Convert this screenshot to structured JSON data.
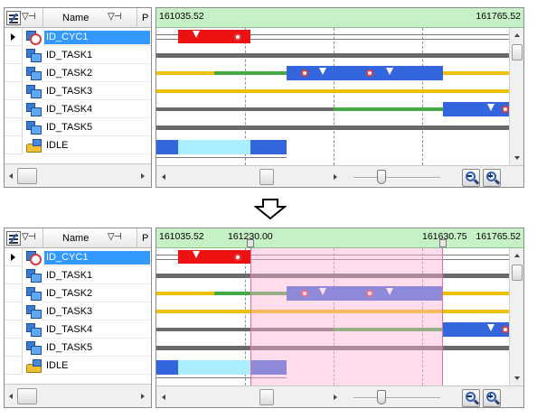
{
  "header": {
    "filter_label": "▽⊣",
    "name_label": "Name",
    "name_filter_label": "▽⊣",
    "priority_label": "P"
  },
  "tasks": [
    {
      "name": "ID_CYC1",
      "type": "cyclic",
      "selected": true
    },
    {
      "name": "ID_TASK1",
      "type": "task",
      "selected": false
    },
    {
      "name": "ID_TASK2",
      "type": "task",
      "selected": false
    },
    {
      "name": "ID_TASK3",
      "type": "task",
      "selected": false
    },
    {
      "name": "ID_TASK4",
      "type": "task",
      "selected": false
    },
    {
      "name": "ID_TASK5",
      "type": "task",
      "selected": false
    },
    {
      "name": "IDLE",
      "type": "idle",
      "selected": false
    }
  ],
  "top_view": {
    "ruler_start": "161035.52",
    "ruler_end": "161765.52"
  },
  "bottom_view": {
    "ruler_start": "161035.52",
    "marker_1": "161230.00",
    "marker_2": "161630.75",
    "ruler_end": "161765.52"
  },
  "colors": {
    "running": "#3366dd",
    "cyclic_running": "#ee1111",
    "ready": "#44aa44",
    "waiting": "#f0c000",
    "dormant": "#6a6a6a",
    "idle_light": "#aaeeff",
    "range_shade": "#ffcce0",
    "ruler_bg": "#c6f0c6",
    "selection": "#3399ff"
  },
  "icons": {
    "settings": "column-settings-icon",
    "filter": "filter-pin-icon",
    "zoom_out": "zoom-out-icon",
    "zoom_in": "zoom-in-icon",
    "transition": "down-arrow-icon"
  }
}
